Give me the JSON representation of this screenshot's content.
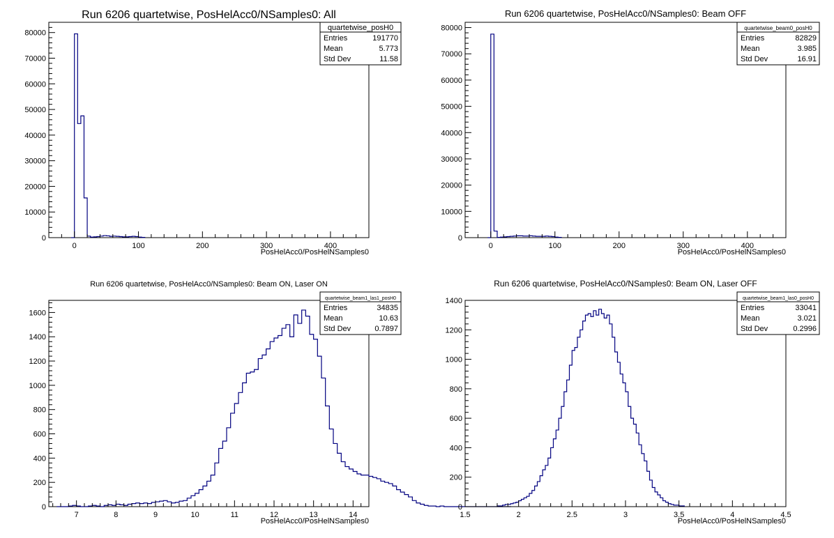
{
  "colors": {
    "line": "#000080",
    "axis": "#000000",
    "frame": "#000000"
  },
  "chart_data": [
    {
      "type": "bar",
      "title": "Run 6206 quartetwise, PosHelAcc0/NSamples0: All",
      "xlabel": "PosHelAcc0/PosHelNSamples0",
      "xlim": [
        -40,
        460
      ],
      "ylim": [
        0,
        84000
      ],
      "xticks": [
        0,
        100,
        200,
        300,
        400
      ],
      "yticks": [
        0,
        10000,
        20000,
        30000,
        40000,
        50000,
        60000,
        70000,
        80000
      ],
      "ytick_labels": [
        "0",
        "10000",
        "20000",
        "30000",
        "40000",
        "50000",
        "60000",
        "70000",
        "80000"
      ],
      "grid": false,
      "stats": {
        "name": "quartetwise_posH0",
        "rows": [
          {
            "label": "Entries",
            "value": "191770"
          },
          {
            "label": "Mean",
            "value": "5.773"
          },
          {
            "label": "Std Dev",
            "value": "11.58"
          }
        ]
      },
      "hist": {
        "edges": [
          -5,
          0,
          5,
          10,
          15,
          20,
          25,
          30,
          35,
          40,
          45,
          50,
          55,
          60,
          65,
          70,
          75,
          80,
          85,
          90,
          95,
          100,
          105,
          110
        ],
        "values": [
          0,
          79500,
          44500,
          47500,
          15500,
          600,
          200,
          300,
          400,
          600,
          800,
          700,
          500,
          600,
          500,
          400,
          300,
          300,
          400,
          500,
          400,
          200,
          100
        ]
      }
    },
    {
      "type": "bar",
      "title": "Run 6206 quartetwise, PosHelAcc0/NSamples0: Beam OFF",
      "xlabel": "PosHelAcc0/PosHelNSamples0",
      "xlim": [
        -40,
        460
      ],
      "ylim": [
        0,
        82000
      ],
      "xticks": [
        0,
        100,
        200,
        300,
        400
      ],
      "yticks": [
        0,
        10000,
        20000,
        30000,
        40000,
        50000,
        60000,
        70000,
        80000
      ],
      "ytick_labels": [
        "0",
        "10000",
        "20000",
        "30000",
        "40000",
        "50000",
        "60000",
        "70000",
        "80000"
      ],
      "grid": false,
      "stats": {
        "name": "quartetwise_beam0_posH0",
        "rows": [
          {
            "label": "Entries",
            "value": "82829"
          },
          {
            "label": "Mean",
            "value": "3.985"
          },
          {
            "label": "Std Dev",
            "value": "16.91"
          }
        ]
      },
      "hist": {
        "edges": [
          -5,
          0,
          5,
          10,
          15,
          20,
          25,
          30,
          35,
          40,
          45,
          50,
          55,
          60,
          65,
          70,
          75,
          80,
          85,
          90,
          95,
          100,
          105,
          110
        ],
        "values": [
          0,
          77500,
          2500,
          100,
          200,
          300,
          400,
          500,
          600,
          700,
          700,
          600,
          600,
          700,
          600,
          500,
          500,
          500,
          600,
          500,
          400,
          200,
          100
        ]
      }
    },
    {
      "type": "bar",
      "title": "Run 6206 quartetwise, PosHelAcc0/NSamples0: Beam ON, Laser ON",
      "xlabel": "PosHelAcc0/PosHelNSamples0",
      "xlim": [
        6.3,
        14.4
      ],
      "ylim": [
        0,
        1700
      ],
      "xticks": [
        7,
        8,
        9,
        10,
        11,
        12,
        13,
        14
      ],
      "yticks": [
        0,
        200,
        400,
        600,
        800,
        1000,
        1200,
        1400,
        1600
      ],
      "ytick_labels": [
        "0",
        "200",
        "400",
        "600",
        "800",
        "1000",
        "1200",
        "1400",
        "1600"
      ],
      "grid": false,
      "stats": {
        "name": "quartetwise_beam1_las1_posH0",
        "rows": [
          {
            "label": "Entries",
            "value": "34835"
          },
          {
            "label": "Mean",
            "value": "10.63"
          },
          {
            "label": "Std Dev",
            "value": "0.7897"
          }
        ]
      },
      "hist": {
        "x0": 6.5,
        "dx": 0.1,
        "values": [
          0,
          0,
          0,
          5,
          10,
          5,
          0,
          0,
          5,
          10,
          5,
          0,
          10,
          15,
          10,
          20,
          15,
          10,
          20,
          25,
          30,
          25,
          30,
          25,
          35,
          40,
          45,
          50,
          40,
          30,
          35,
          45,
          50,
          70,
          90,
          110,
          140,
          170,
          210,
          260,
          360,
          480,
          540,
          650,
          770,
          850,
          940,
          1020,
          1100,
          1110,
          1130,
          1220,
          1250,
          1300,
          1360,
          1390,
          1410,
          1470,
          1500,
          1400,
          1580,
          1510,
          1620,
          1570,
          1420,
          1380,
          1240,
          1060,
          830,
          640,
          520,
          440,
          370,
          330,
          310,
          290,
          270,
          260,
          260,
          250,
          240,
          230,
          210,
          200,
          190,
          170,
          140,
          120,
          100,
          80,
          50,
          30,
          20,
          10,
          5,
          5,
          0,
          5,
          0,
          0,
          0,
          0,
          0,
          0,
          0,
          0,
          0,
          0,
          0,
          0,
          0,
          0,
          0,
          0,
          0
        ]
      }
    },
    {
      "type": "bar",
      "title": "Run 6206 quartetwise, PosHelAcc0/NSamples0: Beam ON, Laser OFF",
      "xlabel": "PosHelAcc0/PosHelNSamples0",
      "xlim": [
        1.5,
        4.5
      ],
      "ylim": [
        0,
        1400
      ],
      "xticks": [
        1.5,
        2,
        2.5,
        3,
        3.5,
        4,
        4.5
      ],
      "xtick_labels": [
        "1.5",
        "2",
        "2.5",
        "3",
        "3.5",
        "4",
        "4.5"
      ],
      "yticks": [
        0,
        200,
        400,
        600,
        800,
        1000,
        1200,
        1400
      ],
      "ytick_labels": [
        "0",
        "200",
        "400",
        "600",
        "800",
        "1000",
        "1200",
        "1400"
      ],
      "grid": false,
      "stats": {
        "name": "quartetwise_beam1_las0_posH0",
        "rows": [
          {
            "label": "Entries",
            "value": "33041"
          },
          {
            "label": "Mean",
            "value": "3.021"
          },
          {
            "label": "Std Dev",
            "value": "0.2996"
          }
        ]
      },
      "hist": {
        "x0": 1.8,
        "dx": 0.025,
        "values": [
          5,
          5,
          10,
          15,
          15,
          20,
          25,
          30,
          40,
          50,
          60,
          70,
          90,
          110,
          140,
          170,
          210,
          250,
          280,
          330,
          400,
          460,
          520,
          600,
          680,
          780,
          860,
          960,
          1060,
          1080,
          1150,
          1200,
          1260,
          1300,
          1310,
          1290,
          1330,
          1300,
          1340,
          1310,
          1280,
          1300,
          1240,
          1150,
          1050,
          980,
          900,
          840,
          780,
          680,
          600,
          560,
          500,
          420,
          360,
          310,
          240,
          180,
          130,
          100,
          80,
          60,
          40,
          30,
          20,
          15,
          10,
          10,
          5,
          5
        ]
      }
    }
  ]
}
